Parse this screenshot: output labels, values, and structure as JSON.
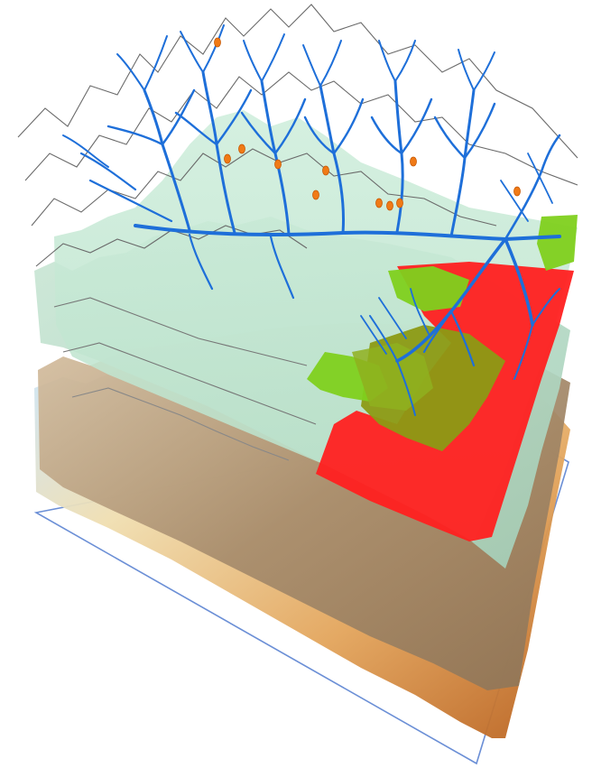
{
  "scene": {
    "background": "#ffffff",
    "layers": [
      {
        "kind": "base-frame",
        "stroke": "#6b8fd6"
      },
      {
        "kind": "elevation-dem",
        "colors": [
          "#c9e6ff",
          "#f0deb0",
          "#e3a55c",
          "#b85f1c"
        ]
      },
      {
        "kind": "geology",
        "colors": [
          "#c8ad8c",
          "#8e7456",
          "#e0d2bc"
        ]
      },
      {
        "kind": "terrain-surface",
        "colors": [
          "#b9dcc9",
          "#9fcbb4"
        ]
      },
      {
        "kind": "land-use",
        "colors": [
          "#c8eccd",
          "#80d01e",
          "#ff2020",
          "#9a9a22"
        ]
      },
      {
        "kind": "topographic-wireframe",
        "stroke": "#6a6a6a"
      },
      {
        "kind": "river-network",
        "stroke": "#1e6fd9"
      },
      {
        "kind": "sample-points",
        "fill": "#f07a16"
      }
    ]
  }
}
